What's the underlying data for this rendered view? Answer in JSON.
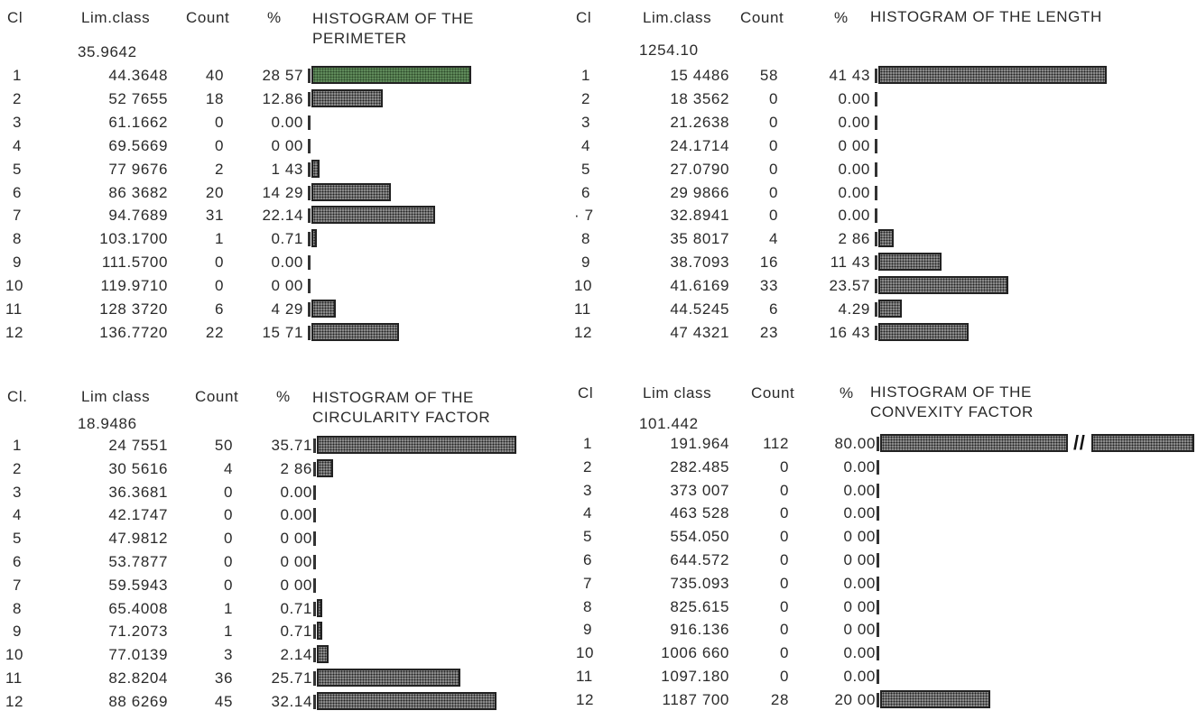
{
  "headers": {
    "ci": "Cl",
    "ci_dot": "Cl.",
    "lim_class": "Lim.class",
    "lim_class_space": "Lim class",
    "count": "Count",
    "pct": "%"
  },
  "break_mark": "//",
  "colors": {
    "bar": "#8a8a8a",
    "highlight": "#5f8a5a",
    "text": "#2a2a2a"
  },
  "chart_data": [
    {
      "type": "bar",
      "orientation": "horizontal",
      "title": "HISTOGRAM OF THE\nPERIMETER",
      "ci_label": "Cl",
      "lim_label": "Lim.class",
      "first_limit": "35.9642",
      "rows": [
        {
          "ci": "1",
          "lim": "44.3648",
          "count": "40",
          "pct": "28 57",
          "value": 28.57,
          "highlight": true
        },
        {
          "ci": "2",
          "lim": "52 7655",
          "count": "18",
          "pct": "12.86",
          "value": 12.86
        },
        {
          "ci": "3",
          "lim": "61.1662",
          "count": "0",
          "pct": "0.00",
          "value": 0
        },
        {
          "ci": "4",
          "lim": "69.5669",
          "count": "0",
          "pct": "0 00",
          "value": 0
        },
        {
          "ci": "5",
          "lim": "77 9676",
          "count": "2",
          "pct": "1 43",
          "value": 1.43
        },
        {
          "ci": "6",
          "lim": "86 3682",
          "count": "20",
          "pct": "14 29",
          "value": 14.29
        },
        {
          "ci": "7",
          "lim": "94.7689",
          "count": "31",
          "pct": "22.14",
          "value": 22.14
        },
        {
          "ci": "8",
          "lim": "103.1700",
          "count": "1",
          "pct": "0.71",
          "value": 0.71
        },
        {
          "ci": "9",
          "lim": "111.5700",
          "count": "0",
          "pct": "0.00",
          "value": 0
        },
        {
          "ci": "10",
          "lim": "119.9710",
          "count": "0",
          "pct": "0 00",
          "value": 0
        },
        {
          "ci": "11",
          "lim": "128 3720",
          "count": "6",
          "pct": "4 29",
          "value": 4.29
        },
        {
          "ci": "12",
          "lim": "136.7720",
          "count": "22",
          "pct": "15 71",
          "value": 15.71
        }
      ]
    },
    {
      "type": "bar",
      "orientation": "horizontal",
      "title": "HISTOGRAM OF THE LENGTH",
      "ci_label": "Cl",
      "lim_label": "Lim.class",
      "first_limit": "1254.10",
      "rows": [
        {
          "ci": "1",
          "lim": "15 4486",
          "count": "58",
          "pct": "41 43",
          "value": 41.43
        },
        {
          "ci": "2",
          "lim": "18 3562",
          "count": "0",
          "pct": "0.00",
          "value": 0
        },
        {
          "ci": "3",
          "lim": "21.2638",
          "count": "0",
          "pct": "0.00",
          "value": 0
        },
        {
          "ci": "4",
          "lim": "24.1714",
          "count": "0",
          "pct": "0 00",
          "value": 0
        },
        {
          "ci": "5",
          "lim": "27.0790",
          "count": "0",
          "pct": "0.00",
          "value": 0
        },
        {
          "ci": "6",
          "lim": "29 9866",
          "count": "0",
          "pct": "0.00",
          "value": 0
        },
        {
          "ci": "· 7",
          "lim": "32.8941",
          "count": "0",
          "pct": "0.00",
          "value": 0
        },
        {
          "ci": "8",
          "lim": "35 8017",
          "count": "4",
          "pct": "2 86",
          "value": 2.86
        },
        {
          "ci": "9",
          "lim": "38.7093",
          "count": "16",
          "pct": "11 43",
          "value": 11.43
        },
        {
          "ci": "10",
          "lim": "41.6169",
          "count": "33",
          "pct": "23.57",
          "value": 23.57
        },
        {
          "ci": "11",
          "lim": "44.5245",
          "count": "6",
          "pct": "4.29",
          "value": 4.29
        },
        {
          "ci": "12",
          "lim": "47 4321",
          "count": "23",
          "pct": "16 43",
          "value": 16.43
        }
      ]
    },
    {
      "type": "bar",
      "orientation": "horizontal",
      "title": "HISTOGRAM OF THE\nCIRCULARITY FACTOR",
      "ci_label": "Cl.",
      "lim_label": "Lim class",
      "first_limit": "18.9486",
      "rows": [
        {
          "ci": "1",
          "lim": "24 7551",
          "count": "50",
          "pct": "35.71",
          "value": 35.71
        },
        {
          "ci": "2",
          "lim": "30 5616",
          "count": "4",
          "pct": "2 86",
          "value": 2.86
        },
        {
          "ci": "3",
          "lim": "36.3681",
          "count": "0",
          "pct": "0.00",
          "value": 0
        },
        {
          "ci": "4",
          "lim": "42.1747",
          "count": "0",
          "pct": "0.00",
          "value": 0
        },
        {
          "ci": "5",
          "lim": "47.9812",
          "count": "0",
          "pct": "0 00",
          "value": 0
        },
        {
          "ci": "6",
          "lim": "53.7877",
          "count": "0",
          "pct": "0 00",
          "value": 0
        },
        {
          "ci": "7",
          "lim": "59.5943",
          "count": "0",
          "pct": "0 00",
          "value": 0
        },
        {
          "ci": "8",
          "lim": "65.4008",
          "count": "1",
          "pct": "0.71",
          "value": 0.71
        },
        {
          "ci": "9",
          "lim": "71.2073",
          "count": "1",
          "pct": "0.71",
          "value": 0.71
        },
        {
          "ci": "10",
          "lim": "77.0139",
          "count": "3",
          "pct": "2.14",
          "value": 2.14
        },
        {
          "ci": "11",
          "lim": "82.8204",
          "count": "36",
          "pct": "25.71",
          "value": 25.71
        },
        {
          "ci": "12",
          "lim": "88 6269",
          "count": "45",
          "pct": "32.14",
          "value": 32.14
        }
      ]
    },
    {
      "type": "bar",
      "orientation": "horizontal",
      "title": "HISTOGRAM OF THE\nCONVEXITY FACTOR",
      "ci_label": "Cl",
      "lim_label": "Lim class",
      "first_limit": "101.442",
      "broken_axis": true,
      "rows": [
        {
          "ci": "1",
          "lim": "191.964",
          "count": "112",
          "pct": "80.00",
          "value": 80.0
        },
        {
          "ci": "2",
          "lim": "282.485",
          "count": "0",
          "pct": "0.00",
          "value": 0
        },
        {
          "ci": "3",
          "lim": "373 007",
          "count": "0",
          "pct": "0.00",
          "value": 0
        },
        {
          "ci": "4",
          "lim": "463 528",
          "count": "0",
          "pct": "0.00",
          "value": 0
        },
        {
          "ci": "5",
          "lim": "554.050",
          "count": "0",
          "pct": "0 00",
          "value": 0
        },
        {
          "ci": "6",
          "lim": "644.572",
          "count": "0",
          "pct": "0 00",
          "value": 0
        },
        {
          "ci": "7",
          "lim": "735.093",
          "count": "0",
          "pct": "0.00",
          "value": 0
        },
        {
          "ci": "8",
          "lim": "825.615",
          "count": "0",
          "pct": "0 00",
          "value": 0
        },
        {
          "ci": "9",
          "lim": "916.136",
          "count": "0",
          "pct": "0 00",
          "value": 0
        },
        {
          "ci": "10",
          "lim": "1006 660",
          "count": "0",
          "pct": "0.00",
          "value": 0
        },
        {
          "ci": "11",
          "lim": "1097.180",
          "count": "0",
          "pct": "0.00",
          "value": 0
        },
        {
          "ci": "12",
          "lim": "1187 700",
          "count": "28",
          "pct": "20 00",
          "value": 20.0
        }
      ]
    }
  ]
}
